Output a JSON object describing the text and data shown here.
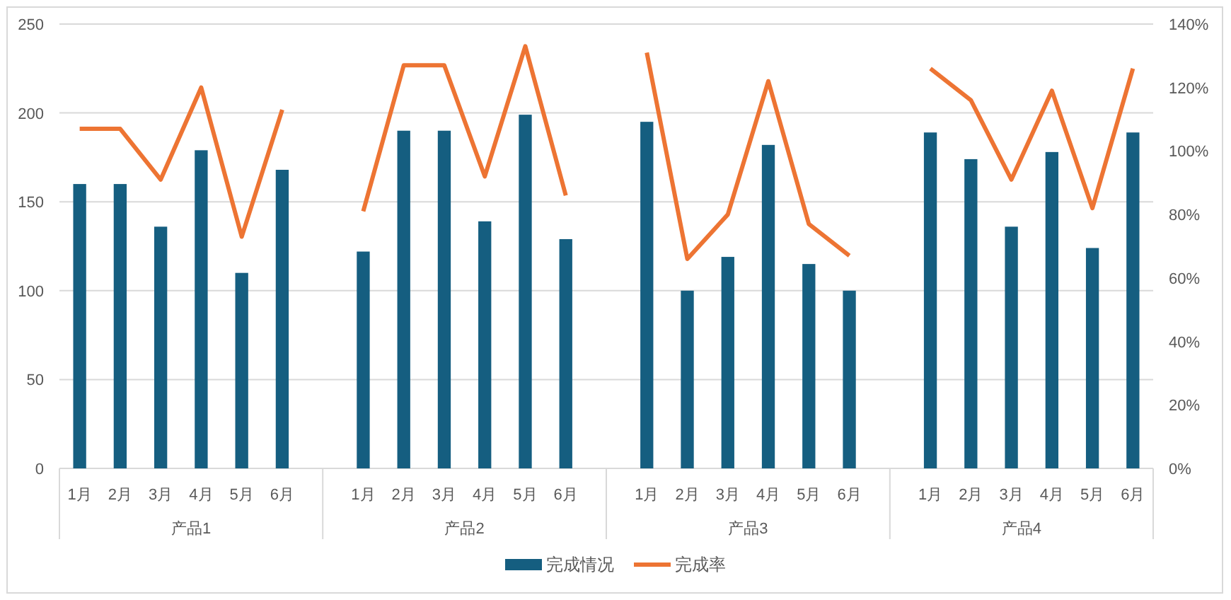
{
  "chart_data": {
    "type": "bar",
    "categories": [
      "1月",
      "2月",
      "3月",
      "4月",
      "5月",
      "6月",
      null,
      "1月",
      "2月",
      "3月",
      "4月",
      "5月",
      "6月",
      null,
      "1月",
      "2月",
      "3月",
      "4月",
      "5月",
      "6月",
      null,
      "1月",
      "2月",
      "3月",
      "4月",
      "5月",
      "6月"
    ],
    "series": [
      {
        "name": "完成情况",
        "color": "#155e80",
        "values": [
          160,
          160,
          136,
          179,
          110,
          168,
          null,
          122,
          190,
          190,
          139,
          199,
          129,
          null,
          195,
          100,
          119,
          182,
          115,
          100,
          null,
          189,
          174,
          136,
          178,
          124,
          189
        ]
      },
      {
        "name": "完成率",
        "type": "line",
        "axis": "y2",
        "color": "#ed7433",
        "values": [
          107,
          107,
          91,
          120,
          73,
          113,
          null,
          81,
          127,
          127,
          92,
          133,
          86,
          null,
          131,
          66,
          80,
          122,
          77,
          67,
          null,
          126,
          116,
          91,
          119,
          82,
          126
        ]
      }
    ],
    "ylim": [
      0,
      250
    ],
    "yticks": [
      0,
      50,
      100,
      150,
      200,
      250
    ],
    "y2lim": [
      0,
      140
    ],
    "y2ticks": [
      {
        "value": 0,
        "label": "0%"
      },
      {
        "value": 20,
        "label": "20%"
      },
      {
        "value": 40,
        "label": "40%"
      },
      {
        "value": 60,
        "label": "60%"
      },
      {
        "value": 80,
        "label": "80%"
      },
      {
        "value": 100,
        "label": "100%"
      },
      {
        "value": 120,
        "label": "120%"
      },
      {
        "value": 140,
        "label": "140%"
      }
    ],
    "annotations": [
      "产品1",
      "产品2",
      "产品3",
      "产品4"
    ],
    "grid": "y",
    "legend": "bottom"
  }
}
